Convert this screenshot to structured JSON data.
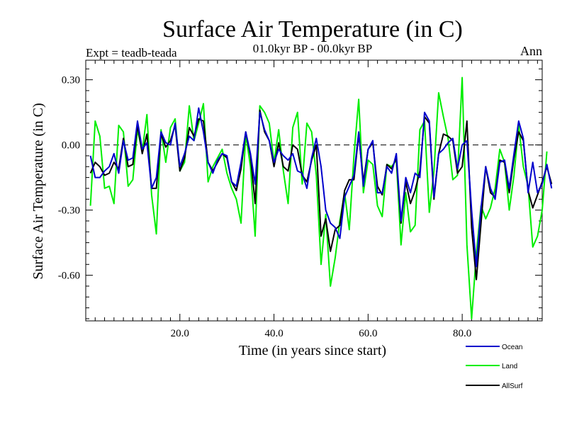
{
  "chart_data": {
    "type": "line",
    "title": "Surface Air Temperature (in C)",
    "subtitle": "01.0kyr BP - 00.0kyr BP",
    "experiment_label": "Expt = teadb-teada",
    "season_label": "Ann",
    "xlabel": "Time (in years since start)",
    "ylabel": "Surface Air Temperature (in C)",
    "xlim": [
      0,
      97
    ],
    "ylim": [
      -0.81,
      0.39
    ],
    "x_ticks": [
      20,
      40,
      60,
      80
    ],
    "x_tick_labels": [
      "20.0",
      "40.0",
      "60.0",
      "80.0"
    ],
    "y_ticks": [
      0.3,
      0.0,
      -0.3,
      -0.6
    ],
    "y_tick_labels": [
      "0.30",
      "0.00",
      "-0.30",
      "-0.60"
    ],
    "zero_line": true,
    "series": [
      {
        "name": "Ocean",
        "color": "#0000cc",
        "values": [
          -0.05,
          -0.15,
          -0.15,
          -0.12,
          -0.1,
          -0.04,
          -0.13,
          0.02,
          -0.07,
          -0.06,
          0.11,
          -0.02,
          0.01,
          -0.2,
          -0.15,
          0.06,
          0.01,
          0.0,
          0.1,
          -0.1,
          -0.04,
          0.04,
          0.02,
          0.17,
          0.06,
          -0.08,
          -0.13,
          -0.07,
          -0.04,
          -0.05,
          -0.17,
          -0.19,
          -0.08,
          0.06,
          -0.04,
          -0.18,
          0.15,
          0.07,
          0.02,
          -0.08,
          -0.02,
          -0.05,
          -0.07,
          -0.04,
          -0.12,
          -0.13,
          -0.2,
          -0.06,
          0.03,
          -0.1,
          -0.3,
          -0.36,
          -0.38,
          -0.43,
          -0.24,
          -0.19,
          -0.14,
          0.06,
          -0.19,
          -0.02,
          0.02,
          -0.22,
          -0.22,
          -0.1,
          -0.13,
          -0.04,
          -0.35,
          -0.15,
          -0.22,
          -0.13,
          -0.15,
          0.15,
          0.11,
          -0.24,
          -0.04,
          -0.02,
          0.01,
          0.03,
          -0.11,
          0.0,
          0.02,
          -0.3,
          -0.56,
          -0.29,
          -0.1,
          -0.2,
          -0.25,
          -0.08,
          -0.07,
          -0.2,
          -0.04,
          0.11,
          0.03,
          -0.22,
          -0.08,
          -0.22,
          -0.18,
          -0.09,
          -0.2
        ]
      },
      {
        "name": "Land",
        "color": "#00ee00",
        "values": [
          -0.28,
          0.11,
          0.04,
          -0.2,
          -0.19,
          -0.27,
          0.09,
          0.06,
          -0.19,
          -0.16,
          0.07,
          -0.03,
          0.14,
          -0.23,
          -0.41,
          0.07,
          -0.08,
          0.08,
          0.12,
          -0.12,
          -0.08,
          0.18,
          0.02,
          0.1,
          0.19,
          -0.17,
          -0.1,
          -0.06,
          -0.02,
          -0.13,
          -0.2,
          -0.25,
          -0.36,
          0.05,
          -0.1,
          -0.42,
          0.18,
          0.15,
          0.1,
          -0.08,
          0.07,
          -0.12,
          -0.27,
          0.08,
          0.15,
          -0.18,
          0.1,
          0.06,
          -0.14,
          -0.55,
          -0.32,
          -0.65,
          -0.52,
          -0.35,
          -0.22,
          -0.39,
          -0.05,
          0.21,
          -0.22,
          -0.07,
          -0.09,
          -0.28,
          -0.33,
          -0.09,
          -0.1,
          -0.07,
          -0.46,
          -0.22,
          -0.4,
          -0.37,
          0.07,
          0.11,
          -0.31,
          -0.12,
          0.24,
          0.13,
          0.03,
          -0.16,
          -0.14,
          0.31,
          -0.46,
          -0.8,
          -0.5,
          -0.28,
          -0.34,
          -0.29,
          -0.2,
          -0.02,
          -0.08,
          -0.3,
          -0.14,
          0.09,
          -0.1,
          -0.19,
          -0.47,
          -0.42,
          -0.3,
          -0.03
        ]
      },
      {
        "name": "AllSurf",
        "color": "#000000",
        "values": [
          -0.13,
          -0.08,
          -0.1,
          -0.14,
          -0.13,
          -0.08,
          -0.11,
          0.03,
          -0.1,
          -0.09,
          0.09,
          -0.04,
          0.05,
          -0.2,
          -0.2,
          0.05,
          -0.01,
          0.02,
          0.09,
          -0.12,
          -0.06,
          0.08,
          0.04,
          0.12,
          0.11,
          -0.08,
          -0.12,
          -0.08,
          -0.04,
          -0.06,
          -0.17,
          -0.21,
          -0.11,
          0.06,
          -0.05,
          -0.27,
          0.16,
          0.06,
          0.02,
          -0.1,
          0.01,
          -0.1,
          -0.12,
          0.0,
          -0.02,
          -0.14,
          -0.17,
          -0.07,
          0.0,
          -0.42,
          -0.34,
          -0.49,
          -0.39,
          -0.37,
          -0.21,
          -0.16,
          -0.16,
          0.05,
          -0.17,
          -0.02,
          0.01,
          -0.19,
          -0.23,
          -0.09,
          -0.11,
          -0.06,
          -0.36,
          -0.17,
          -0.27,
          -0.21,
          -0.12,
          0.13,
          0.1,
          -0.25,
          -0.04,
          0.05,
          0.04,
          0.02,
          -0.13,
          -0.1,
          0.11,
          -0.38,
          -0.62,
          -0.36,
          -0.1,
          -0.22,
          -0.24,
          -0.07,
          -0.08,
          -0.22,
          -0.06,
          0.06,
          0.02,
          -0.21,
          -0.29,
          -0.23,
          -0.17,
          -0.1,
          -0.18
        ]
      }
    ]
  }
}
